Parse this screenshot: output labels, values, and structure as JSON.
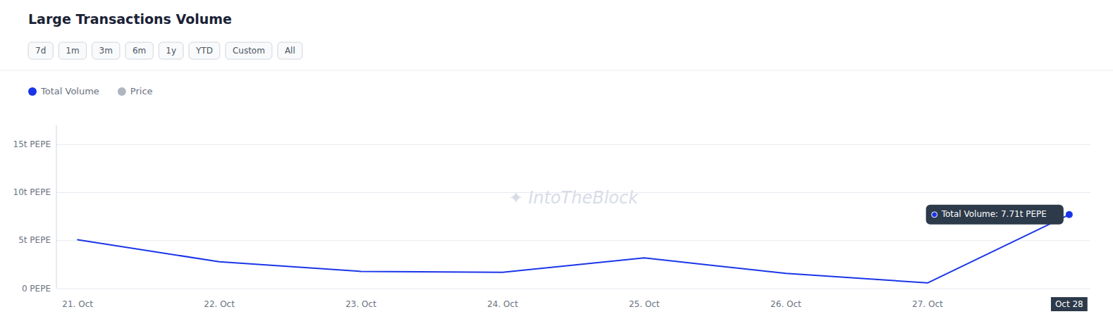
{
  "chart_data": {
    "type": "line",
    "title": "Large Transactions Volume",
    "categories": [
      "21. Oct",
      "22. Oct",
      "23. Oct",
      "24. Oct",
      "25. Oct",
      "26. Oct",
      "27. Oct",
      "Oct 28"
    ],
    "series": [
      {
        "name": "Total Volume",
        "color": "#1a35e8",
        "values": [
          5.1,
          2.8,
          1.8,
          1.7,
          3.2,
          1.6,
          0.6,
          7.71
        ]
      },
      {
        "name": "Price",
        "color": "#b0b5c0",
        "values": [
          null,
          null,
          null,
          null,
          null,
          null,
          null,
          null
        ]
      }
    ],
    "ylim": [
      0,
      17
    ],
    "yticks": [
      {
        "value": 0,
        "label": "0 PEPE"
      },
      {
        "value": 5,
        "label": "5t PEPE"
      },
      {
        "value": 10,
        "label": "10t PEPE"
      },
      {
        "value": 15,
        "label": "15t PEPE"
      }
    ],
    "grid": true,
    "tabs": [
      "7d",
      "1m",
      "3m",
      "6m",
      "1y",
      "YTD",
      "Custom",
      "All"
    ],
    "annotations": [
      {
        "text": "Total Volume: 7.71t PEPE"
      },
      {
        "text": "✦  IntoTheBlock"
      }
    ]
  }
}
